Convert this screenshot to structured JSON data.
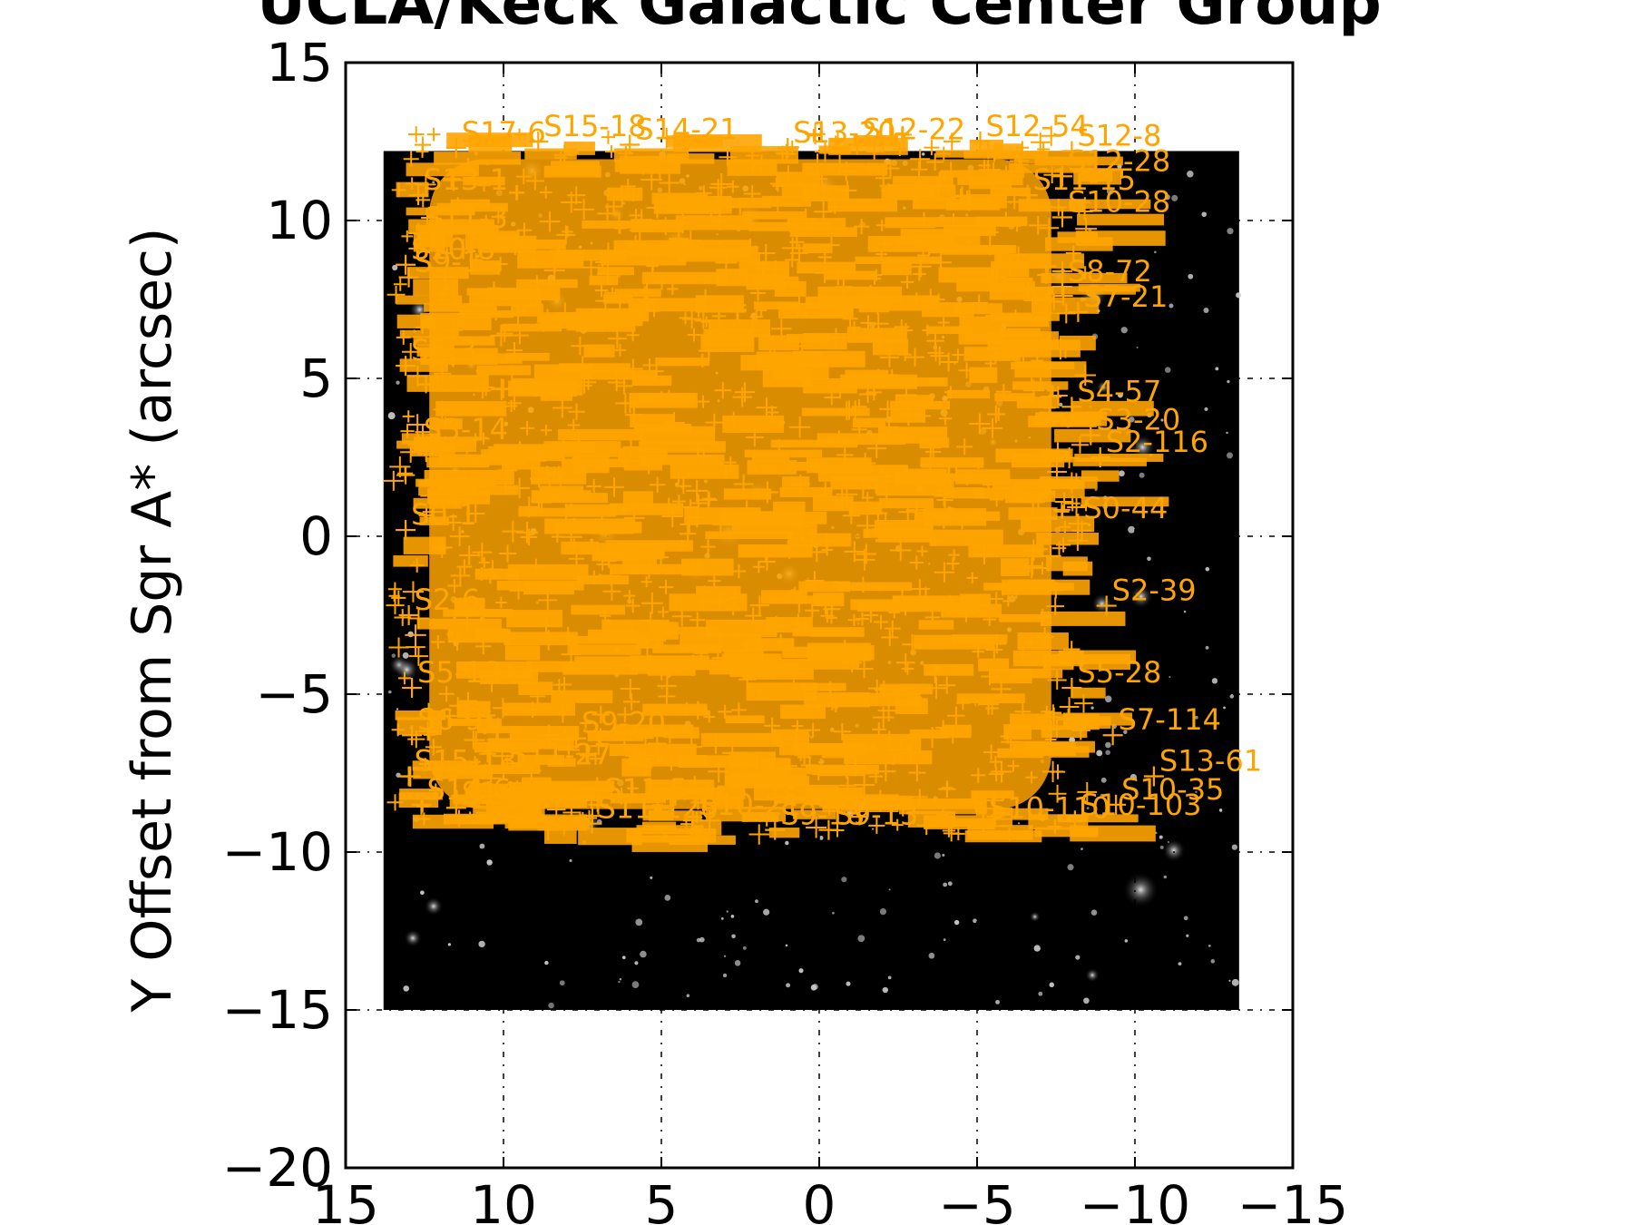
{
  "colors": {
    "marker": "#FFA500",
    "field_background": "#000000",
    "page_background": "#ffffff",
    "axes": "#000000"
  },
  "chart_data": {
    "type": "scatter",
    "title": "UCLA/Keck Galactic Center Group",
    "xlabel": "",
    "ylabel": "Y Offset from Sgr A* (arcsec)",
    "xlim": [
      15,
      -15
    ],
    "ylim": [
      -20,
      15
    ],
    "x_inverted": true,
    "xticks": [
      15,
      10,
      5,
      0,
      -5,
      -10,
      -15
    ],
    "yticks": [
      15,
      10,
      5,
      0,
      -5,
      -10,
      -15,
      -20
    ],
    "xtick_labels": [
      "15",
      "10",
      "5",
      "0",
      "−5",
      "−10",
      "−15"
    ],
    "ytick_labels": [
      "15",
      "10",
      "5",
      "0",
      "−5",
      "−10",
      "−15",
      "−20"
    ],
    "grid": true,
    "grid_style": "dotted",
    "background_image": {
      "description": "near-infrared star field",
      "x_extent": [
        13.8,
        -13.3
      ],
      "y_extent": [
        -15,
        12.2
      ]
    },
    "marker": "+",
    "marker_color": "#FFA500",
    "series": [
      {
        "points": [
          {
            "x": -10.6,
            "y": -7.6,
            "label": "S13-61"
          },
          {
            "x": -7.7,
            "y": 10.1,
            "label": "S10-28"
          },
          {
            "x": -7.7,
            "y": 11.4,
            "label": "S12-28"
          },
          {
            "x": -8.9,
            "y": 2.5,
            "label": "S2-116"
          },
          {
            "x": -8.6,
            "y": 3.2,
            "label": "S3-20"
          },
          {
            "x": -8.0,
            "y": 4.1,
            "label": "S4-57"
          },
          {
            "x": -8.2,
            "y": 0.4,
            "label": "S0-44"
          },
          {
            "x": -9.1,
            "y": -2.2,
            "label": "S2-39"
          },
          {
            "x": -8.0,
            "y": -4.8,
            "label": "S5-28"
          },
          {
            "x": -9.3,
            "y": -6.3,
            "label": "S7-114"
          },
          {
            "x": -9.4,
            "y": -8.5,
            "label": "S10-35"
          },
          {
            "x": -8.1,
            "y": -9.0,
            "label": "S10-103"
          },
          {
            "x": -5.2,
            "y": -9.1,
            "label": "S10-110"
          },
          {
            "x": -7.7,
            "y": 7.9,
            "label": "S8-72"
          },
          {
            "x": -8.2,
            "y": 7.1,
            "label": "S7-21"
          },
          {
            "x": -8.0,
            "y": 12.2,
            "label": "S12-8"
          },
          {
            "x": -6.6,
            "y": 10.8,
            "label": "S11-15"
          },
          {
            "x": -5.1,
            "y": 12.5,
            "label": "S12-54"
          },
          {
            "x": 13.0,
            "y": 8.2,
            "label": "S9-1"
          },
          {
            "x": 13.1,
            "y": 5.4,
            "label": "S5-3"
          },
          {
            "x": 12.7,
            "y": 2.9,
            "label": "S3-14"
          },
          {
            "x": 13.1,
            "y": 0.2,
            "label": "S0-1"
          },
          {
            "x": 13.0,
            "y": -2.5,
            "label": "S2-6"
          },
          {
            "x": 12.9,
            "y": -4.8,
            "label": "S5-13"
          },
          {
            "x": 12.9,
            "y": -6.3,
            "label": "S6-9"
          },
          {
            "x": 13.0,
            "y": -7.6,
            "label": "S15-13"
          },
          {
            "x": 12.6,
            "y": -8.5,
            "label": "S14-6"
          },
          {
            "x": 11.5,
            "y": -8.6,
            "label": "S14-0"
          },
          {
            "x": 7.2,
            "y": -9.1,
            "label": "S11-120"
          },
          {
            "x": 7.0,
            "y": -8.5,
            "label": "S11-5"
          },
          {
            "x": 4.0,
            "y": -9.0,
            "label": "S10-21"
          },
          {
            "x": 1.4,
            "y": -9.3,
            "label": "S9-18"
          },
          {
            "x": -0.3,
            "y": -9.3,
            "label": "S9-13"
          },
          {
            "x": 10.0,
            "y": -7.4,
            "label": "S11-27"
          },
          {
            "x": 7.7,
            "y": -6.4,
            "label": "S9-20"
          },
          {
            "x": 12.7,
            "y": 10.8,
            "label": "S13-1"
          },
          {
            "x": 11.5,
            "y": 12.3,
            "label": "S17-6"
          },
          {
            "x": 8.9,
            "y": 12.5,
            "label": "S15-18"
          },
          {
            "x": 6.0,
            "y": 12.4,
            "label": "S14-21"
          },
          {
            "x": 1.0,
            "y": 12.3,
            "label": "S13-20"
          },
          {
            "x": -1.2,
            "y": 12.4,
            "label": "S12-22"
          },
          {
            "x": 12.7,
            "y": 9.6,
            "label": "S11-3"
          },
          {
            "x": 13.1,
            "y": 8.6,
            "label": "S10-8"
          }
        ]
      }
    ],
    "dense_fill_region": {
      "x": [
        13.5,
        -8.5
      ],
      "y": [
        -9.5,
        12.8
      ],
      "color": "#FFA500"
    },
    "visible_label_count": 43
  }
}
